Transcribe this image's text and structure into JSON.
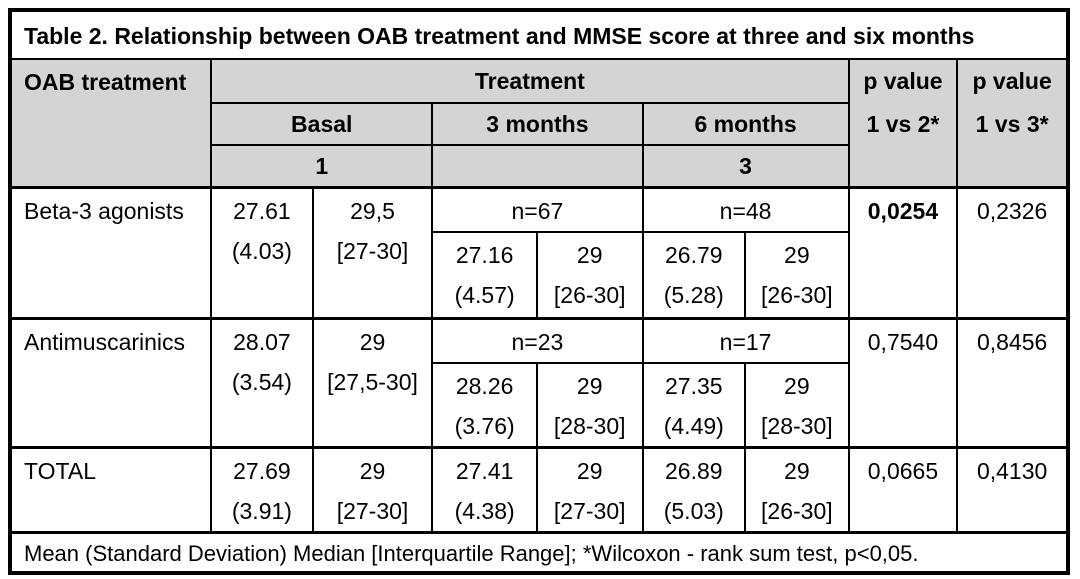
{
  "title": "Table 2. Relationship between OAB treatment and MMSE score at three and six months",
  "colors": {
    "header_bg": "#d4d4d4",
    "border": "#000000",
    "background": "#ffffff"
  },
  "header": {
    "oab_col": "OAB treatment",
    "treatment": "Treatment",
    "basal": "Basal",
    "m3": "3 months",
    "m6": "6 months",
    "num_basal": "1",
    "num_m3": "",
    "num_m6": "3",
    "p12_line1": "p value",
    "p12_line2": "1 vs 2*",
    "p13_line1": "p value",
    "p13_line2": "1 vs 3*"
  },
  "rows": [
    {
      "label": "Beta-3 agonists",
      "basal_mean": "27.61",
      "basal_sd": "(4.03)",
      "basal_median": "29,5",
      "basal_iqr": "[27-30]",
      "m3_n": "n=67",
      "m3_mean": "27.16",
      "m3_sd": "(4.57)",
      "m3_median": "29",
      "m3_iqr": "[26-30]",
      "m6_n": "n=48",
      "m6_mean": "26.79",
      "m6_sd": "(5.28)",
      "m6_median": "29",
      "m6_iqr": "[26-30]",
      "p_1v2": "0,0254",
      "p_1v3": "0,2326"
    },
    {
      "label": "Antimuscarinics",
      "basal_mean": "28.07",
      "basal_sd": "(3.54)",
      "basal_median": "29",
      "basal_iqr": "[27,5-30]",
      "m3_n": "n=23",
      "m3_mean": "28.26",
      "m3_sd": "(3.76)",
      "m3_median": "29",
      "m3_iqr": "[28-30]",
      "m6_n": "n=17",
      "m6_mean": "27.35",
      "m6_sd": "(4.49)",
      "m6_median": "29",
      "m6_iqr": "[28-30]",
      "p_1v2": "0,7540",
      "p_1v3": "0,8456"
    }
  ],
  "total": {
    "label": "TOTAL",
    "basal_mean": "27.69",
    "basal_sd": "(3.91)",
    "basal_median": "29",
    "basal_iqr": "[27-30]",
    "m3_mean": "27.41",
    "m3_sd": "(4.38)",
    "m3_median": "29",
    "m3_iqr": "[27-30]",
    "m6_mean": "26.89",
    "m6_sd": "(5.03)",
    "m6_median": "29",
    "m6_iqr": "[26-30]",
    "p_1v2": "0,0665",
    "p_1v3": "0,4130"
  },
  "footnote": "Mean (Standard Deviation) Median [Interquartile Range]; *Wilcoxon - rank sum test, p<0,05."
}
